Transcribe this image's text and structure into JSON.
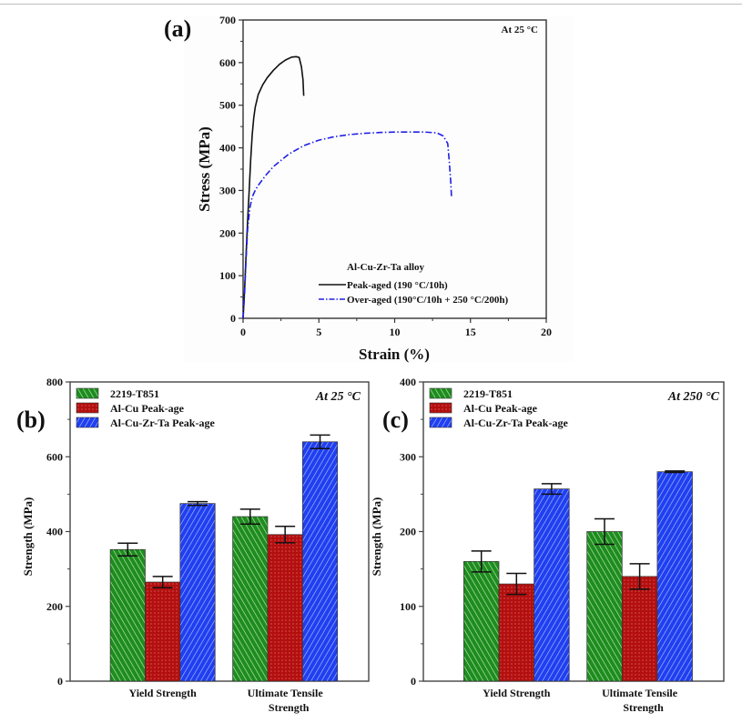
{
  "chart_data": [
    {
      "id": "a",
      "type": "line",
      "panel_label": "(a)",
      "title": "",
      "annotation": "At 25 °C",
      "xlabel": "Strain (%)",
      "ylabel": "Stress (MPa)",
      "xlim": [
        0,
        20
      ],
      "ylim": [
        0,
        700
      ],
      "xticks": [
        0,
        5,
        10,
        15,
        20
      ],
      "yticks": [
        0,
        100,
        200,
        300,
        400,
        500,
        600,
        700
      ],
      "legend_title": "Al-Cu-Zr-Ta alloy",
      "legend_position": "bottom-right",
      "series": [
        {
          "name": "Peak-aged (190 °C/10h)",
          "color": "#111111",
          "style": "solid",
          "x": [
            0,
            0.1,
            0.2,
            0.3,
            0.4,
            0.5,
            0.6,
            0.7,
            0.8,
            1.0,
            1.3,
            1.6,
            2.0,
            2.4,
            2.8,
            3.2,
            3.5,
            3.7,
            3.85,
            3.95,
            4.0
          ],
          "y": [
            0,
            70,
            150,
            230,
            300,
            370,
            430,
            470,
            495,
            525,
            548,
            565,
            582,
            596,
            606,
            613,
            614,
            612,
            590,
            560,
            522
          ]
        },
        {
          "name": "Over-aged (190°C/10h + 250 °C/200h)",
          "color": "#1f1fe6",
          "style": "dashdot",
          "x": [
            0,
            0.1,
            0.2,
            0.3,
            0.45,
            0.6,
            0.8,
            1.0,
            1.5,
            2.0,
            3.0,
            4.0,
            5.0,
            6.0,
            7.0,
            8.0,
            9.0,
            10.0,
            11.0,
            12.0,
            12.8,
            13.2,
            13.5,
            13.6,
            13.7,
            13.75
          ],
          "y": [
            0,
            60,
            140,
            210,
            260,
            285,
            300,
            312,
            336,
            356,
            385,
            405,
            418,
            426,
            431,
            434,
            436,
            437,
            437,
            437,
            435,
            428,
            410,
            370,
            320,
            285
          ]
        }
      ]
    },
    {
      "id": "b",
      "type": "bar",
      "panel_label": "(b)",
      "annotation": "At 25 °C",
      "xlabel": "",
      "ylabel": "Strength (MPa)",
      "ylim": [
        0,
        800
      ],
      "yticks": [
        0,
        200,
        400,
        600,
        800
      ],
      "categories": [
        "Yield Strength",
        "Ultimate Tensile\nStrength"
      ],
      "legend_position": "top-left",
      "series": [
        {
          "name": "2219-T851",
          "color": "#1e8c1e",
          "pattern": "diagonal-left",
          "values": [
            352,
            440
          ],
          "errors": [
            17,
            20
          ]
        },
        {
          "name": "Al-Cu Peak-age",
          "color": "#b30f0f",
          "pattern": "dots",
          "values": [
            265,
            392
          ],
          "errors": [
            15,
            22
          ]
        },
        {
          "name": "Al-Cu-Zr-Ta Peak-age",
          "color": "#1f3ff0",
          "pattern": "diagonal-right",
          "values": [
            475,
            640
          ],
          "errors": [
            5,
            18
          ]
        }
      ]
    },
    {
      "id": "c",
      "type": "bar",
      "panel_label": "(c)",
      "annotation": "At 250 °C",
      "xlabel": "",
      "ylabel": "Strength (MPa)",
      "ylim": [
        0,
        400
      ],
      "yticks": [
        0,
        100,
        200,
        300,
        400
      ],
      "categories": [
        "Yield Strength",
        "Ultimate Tensile\nStrength"
      ],
      "legend_position": "top-left",
      "series": [
        {
          "name": "2219-T851",
          "color": "#1e8c1e",
          "pattern": "diagonal-left",
          "values": [
            160,
            200
          ],
          "errors": [
            14,
            17
          ]
        },
        {
          "name": "Al-Cu Peak-age",
          "color": "#b30f0f",
          "pattern": "dots",
          "values": [
            130,
            140
          ],
          "errors": [
            14,
            17
          ]
        },
        {
          "name": "Al-Cu-Zr-Ta Peak-age",
          "color": "#1f3ff0",
          "pattern": "diagonal-right",
          "values": [
            257,
            280
          ],
          "errors": [
            7,
            1
          ]
        }
      ]
    }
  ]
}
